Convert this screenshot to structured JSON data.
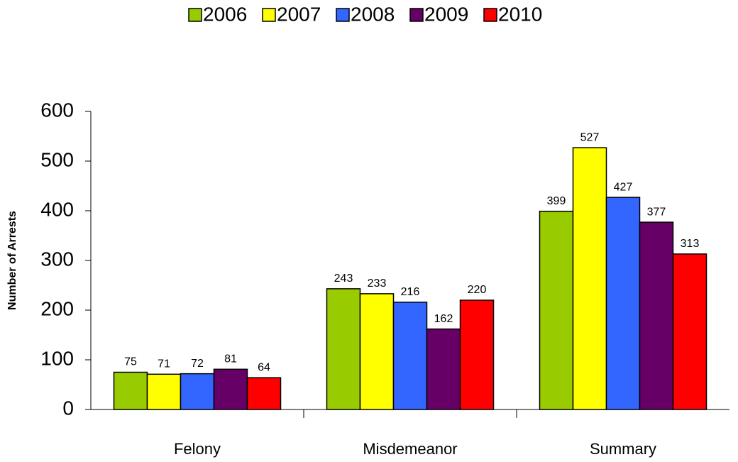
{
  "chart_data": {
    "type": "bar",
    "y_axis_label": "Number of Arrests",
    "categories": [
      "Felony",
      "Misdemeanor",
      "Summary"
    ],
    "series": [
      {
        "name": "2006",
        "color": "#99cc00",
        "values": [
          75,
          243,
          399
        ]
      },
      {
        "name": "2007",
        "color": "#ffff00",
        "values": [
          71,
          233,
          527
        ]
      },
      {
        "name": "2008",
        "color": "#3366ff",
        "values": [
          72,
          216,
          427
        ]
      },
      {
        "name": "2009",
        "color": "#660066",
        "values": [
          81,
          162,
          377
        ]
      },
      {
        "name": "2010",
        "color": "#ff0000",
        "values": [
          64,
          220,
          313
        ]
      }
    ],
    "ylim": [
      0,
      600
    ],
    "yticks": [
      0,
      100,
      200,
      300,
      400,
      500,
      600
    ],
    "grid": false,
    "legend_position": "top"
  }
}
